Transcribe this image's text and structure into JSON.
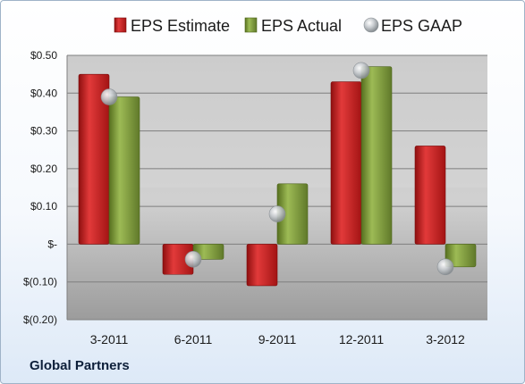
{
  "company": "Global Partners",
  "chart_data": {
    "type": "bar",
    "categories": [
      "3-2011",
      "6-2011",
      "9-2011",
      "12-2011",
      "3-2012"
    ],
    "series": [
      {
        "name": "EPS Estimate",
        "values": [
          0.45,
          -0.08,
          -0.11,
          0.43,
          0.26
        ],
        "color": "#c81a1a",
        "kind": "bar"
      },
      {
        "name": "EPS Actual",
        "values": [
          0.39,
          -0.04,
          0.16,
          0.47,
          -0.06
        ],
        "color": "#7a9a32",
        "kind": "bar"
      },
      {
        "name": "EPS GAAP",
        "values": [
          0.39,
          -0.04,
          0.08,
          0.46,
          -0.06
        ],
        "color": "#b8bec4",
        "kind": "marker"
      }
    ],
    "y_ticks": [
      {
        "value": 0.5,
        "label": "$0.50"
      },
      {
        "value": 0.4,
        "label": "$0.40"
      },
      {
        "value": 0.3,
        "label": "$0.30"
      },
      {
        "value": 0.2,
        "label": "$0.20"
      },
      {
        "value": 0.1,
        "label": "$0.10"
      },
      {
        "value": 0,
        "label": "$-"
      },
      {
        "value": -0.1,
        "label": "$(0.10)"
      },
      {
        "value": -0.2,
        "label": "$(0.20)"
      }
    ],
    "ylim": [
      -0.2,
      0.5
    ],
    "legend_position": "top",
    "grid": true
  }
}
